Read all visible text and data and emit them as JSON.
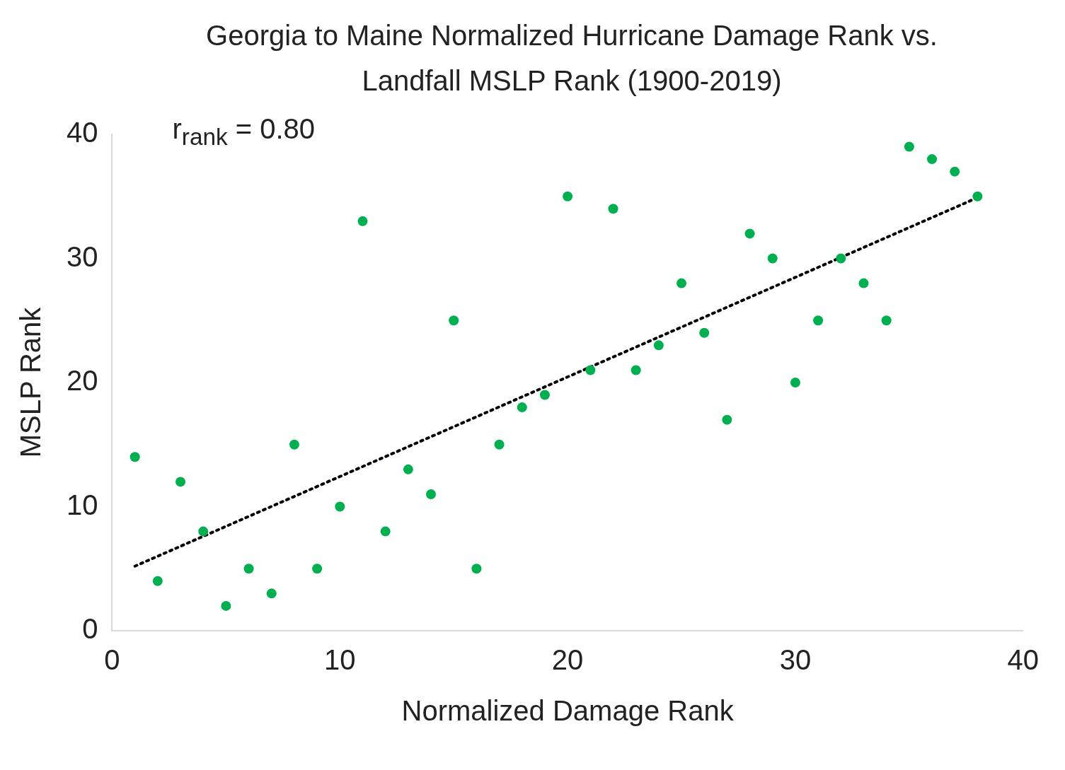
{
  "chart_data": {
    "type": "scatter",
    "title": "Georgia to Maine Normalized Hurricane Damage Rank vs. Landfall MSLP Rank (1900-2019)",
    "xlabel": "Normalized Damage Rank",
    "ylabel": "MSLP Rank",
    "annotations": [
      "r$_{rank}$ = 0.80"
    ],
    "xlim": [
      0,
      40
    ],
    "xticks": [
      0,
      10,
      20,
      30,
      40
    ],
    "ylim": [
      0,
      40
    ],
    "yticks": [
      0,
      10,
      20,
      30,
      40
    ],
    "grid": false,
    "legend": false,
    "marker": "circle",
    "series": [
      {
        "color": "#00b050",
        "x": [
          1,
          2,
          3,
          4,
          5,
          6,
          7,
          8,
          9,
          10,
          11,
          12,
          13,
          14,
          15,
          16,
          17,
          18,
          19,
          20,
          21,
          22,
          23,
          24,
          25,
          26,
          27,
          28,
          29,
          30,
          31,
          32,
          33,
          34,
          35,
          36,
          37,
          38
        ],
        "values": [
          14,
          4,
          12,
          8,
          2,
          5,
          3,
          15,
          5,
          10,
          33,
          8,
          13,
          11,
          25,
          5,
          15,
          18,
          19,
          35,
          21,
          34,
          21,
          23,
          28,
          24,
          17,
          32,
          30,
          20,
          25,
          30,
          28,
          25,
          39,
          38,
          37,
          35
        ]
      },
      {
        "type": "line",
        "color": "#000000",
        "line_style": "dotted",
        "marker": "none",
        "x": [
          1,
          38
        ],
        "values": [
          5.2,
          34.9
        ]
      }
    ]
  }
}
